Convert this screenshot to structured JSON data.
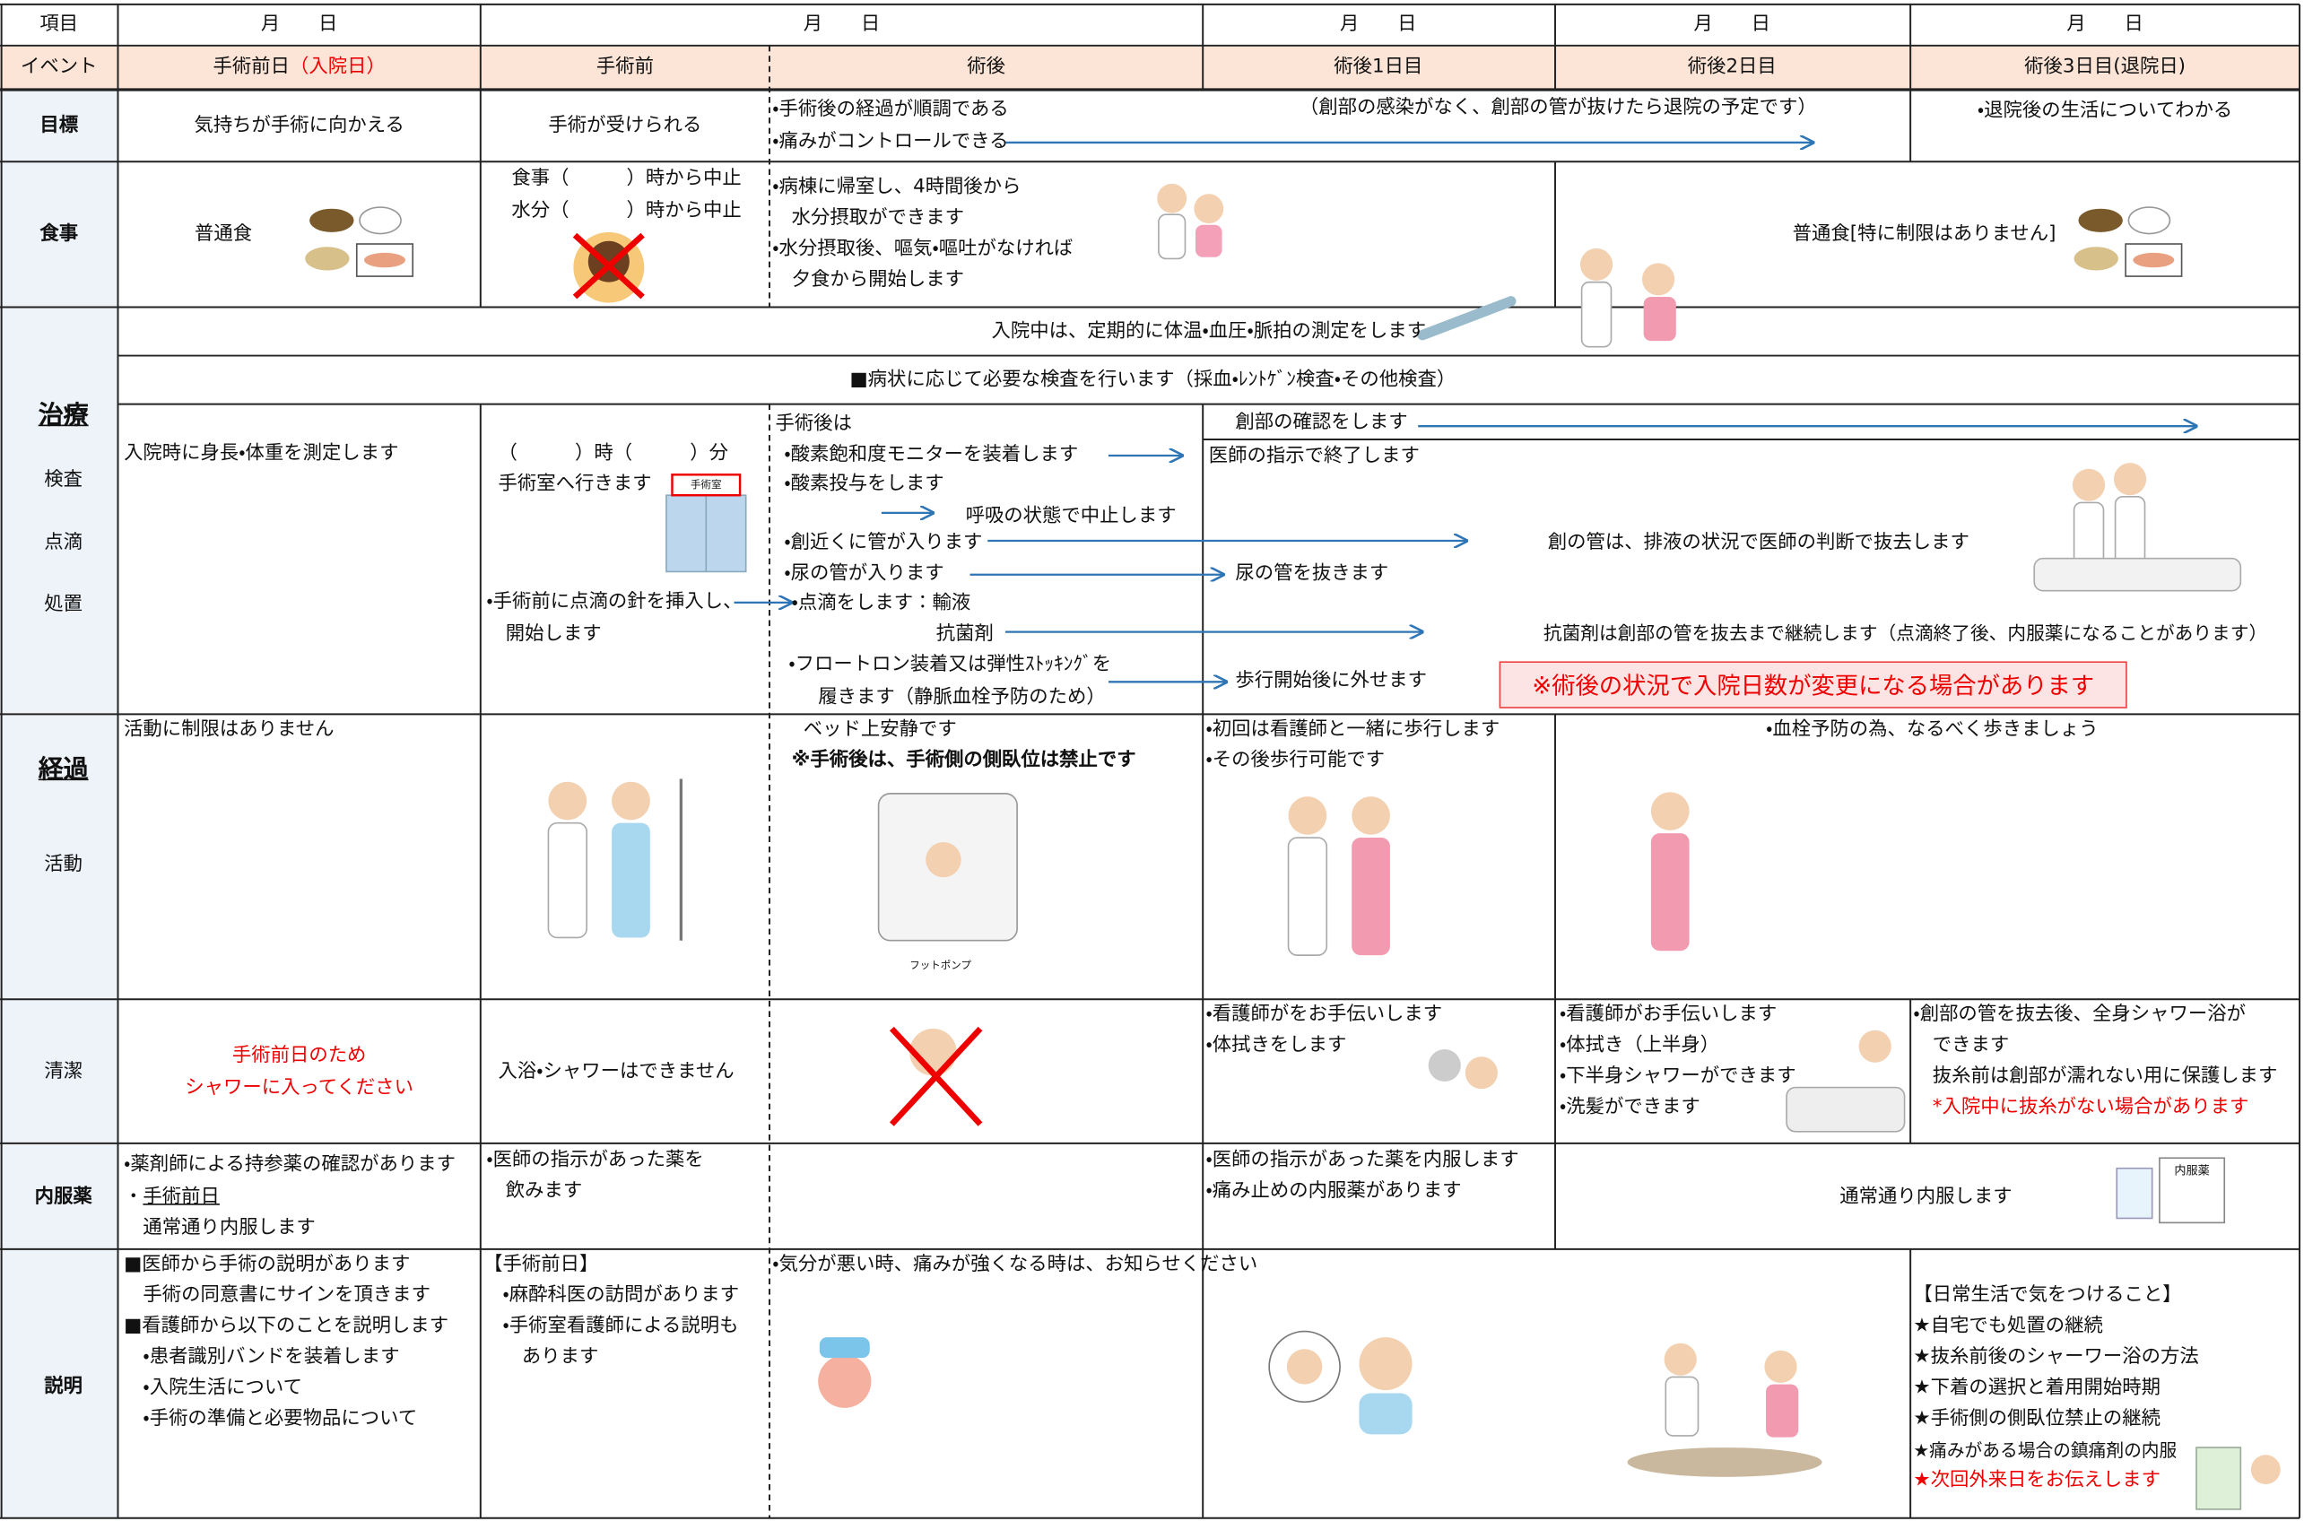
{
  "header": {
    "item": "項目",
    "dates": [
      "月　　日",
      "月　　日",
      "月　　日",
      "月　　日",
      "月　　日"
    ]
  },
  "events": {
    "label": "イベント",
    "days": [
      "手術前日",
      "手術前",
      "術後",
      "術後1日目",
      "術後2日目",
      "術後3日目(退院日)"
    ],
    "day0_note": "（入院日）"
  },
  "goal": {
    "label": "目標",
    "cells": [
      "気持ちが手術に向かえる",
      "手術が受けられる",
      "・手術後の経過が順調である",
      "・痛みがコントロールできる",
      "（創部の感染がなく、創部の管が抜けたら退院の予定です）",
      "・退院後の生活についてわかる"
    ]
  },
  "meal": {
    "label": "食事",
    "cells": [
      "普通食",
      "食事（　　　）時から中止",
      "水分（　　　）時から中止",
      "・病棟に帰室し、4時間後から",
      "　水分摂取ができます",
      "・水分摂取後、嘔気・嘔吐がなければ",
      "　夕食から開始します",
      "普通食[特に制限はありません]"
    ]
  },
  "treatment": {
    "labels": [
      "治療",
      "検査",
      "点滴",
      "処置"
    ],
    "vitals": "入院中は、定期的に体温・血圧・脈拍の測定をします",
    "tests": "■病状に応じて必要な検査を行います（採血・ﾚﾝﾄｹﾞﾝ検査・その他検査）",
    "cells": [
      "入院時に身長・体重を測定します",
      "（　　　）時（　　　）分",
      "手術室へ行きます",
      "・手術前に点滴の針を挿入し、",
      "　開始します",
      "手術後は",
      "・酸素飽和度モニターを装着します",
      "・酸素投与をします",
      "呼吸の状態で中止します",
      "・創近くに管が入ります",
      "・尿の管が入ります",
      "・点滴をします：輸液",
      "抗菌剤",
      "・フロートロン装着又は弾性ｽﾄｯｷﾝｸﾞを",
      "履きます（静脈血栓予防のため）",
      "創部の確認をします",
      "医師の指示で終了します",
      "創の管は、排液の状況で医師の判断で抜去します",
      "尿の管を抜きます",
      "抗菌剤は創部の管を抜去まで継続します（点滴終了後、内服薬になることがあります）",
      "歩行開始後に外せます"
    ],
    "or_label": "手術室",
    "notice": "※術後の状況で入院日数が変更になる場合があります"
  },
  "progress": {
    "labels": [
      "経過",
      "活動"
    ],
    "cells": [
      "活動に制限はありません",
      "ベッド上安静です",
      "※手術後は、手術側の側臥位は禁止です",
      "・初回は看護師と一緒に歩行します",
      "・その後歩行可能です",
      "・血栓予防の為、なるべく歩きましょう"
    ],
    "pump_label": "フットポンプ"
  },
  "hygiene": {
    "label": "清潔",
    "cells": [
      "手術前日のため",
      "シャワーに入ってください",
      "入浴・シャワーはできません",
      "・看護師がをお手伝いします",
      "・体拭きをします",
      "・看護師がお手伝いします",
      "・体拭き（上半身）",
      "・下半身シャワーができます",
      "・洗髪ができます",
      "・創部の管を抜去後、全身シャワー浴が",
      "　できます",
      "　抜糸前は創部が濡れない用に保護します",
      "　*入院中に抜糸がない場合があります"
    ]
  },
  "medicine": {
    "label": "内服薬",
    "cells": [
      "・薬剤師による持参薬の確認があります",
      "・",
      "手術前日",
      "　通常通り内服します",
      "・医師の指示があった薬を",
      "　飲みます",
      "・医師の指示があった薬を内服します",
      "・痛み止めの内服薬があります",
      "通常通り内服します"
    ],
    "bag_label": "内服薬"
  },
  "explanation": {
    "label": "説明",
    "cells": [
      "■医師から手術の説明があります",
      "　手術の同意書にサインを頂きます",
      "■看護師から以下のことを説明します",
      "　・患者識別バンドを装着します",
      "　・入院生活について",
      "　・手術の準備と必要物品について",
      "【手術前日】",
      "　・麻酔科医の訪問があります",
      "　・手術室看護師による説明も",
      "　　あります",
      "・気分が悪い時、痛みが強くなる時は、お知らせください",
      "【日常生活で気をつけること】",
      "★自宅でも処置の継続",
      "★抜糸前後のシャーワー浴の方法",
      "★下着の選択と着用開始時期",
      "★手術側の側臥位禁止の継続",
      "★痛みがある場合の鎮痛剤の内服",
      "★次回外来日をお伝えします"
    ]
  }
}
